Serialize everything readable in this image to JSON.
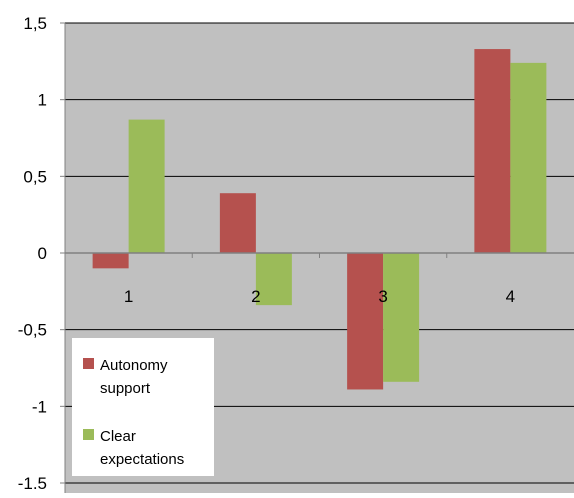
{
  "chart_data": {
    "type": "bar",
    "categories": [
      "1",
      "2",
      "3",
      "4"
    ],
    "series": [
      {
        "name": "Autonomy support",
        "color": "#b5514e",
        "values": [
          -0.1,
          0.39,
          -0.89,
          1.33
        ]
      },
      {
        "name": "Clear expectations",
        "color": "#9bbb59",
        "values": [
          0.87,
          -0.34,
          -0.84,
          1.24
        ]
      }
    ],
    "ylim": [
      -1.5,
      1.5
    ],
    "yticks": [
      1.5,
      1,
      0.5,
      0,
      -0.5,
      -1,
      -1.5
    ],
    "ytick_labels": [
      "1,5",
      "1",
      "0,5",
      "0",
      "-0,5",
      "-1",
      "-1.5"
    ],
    "title": "",
    "xlabel": "",
    "ylabel": "",
    "grid": true,
    "legend_position": "bottom-left",
    "plot_background": "#c0c0c0",
    "gridline_color": "#000000"
  }
}
